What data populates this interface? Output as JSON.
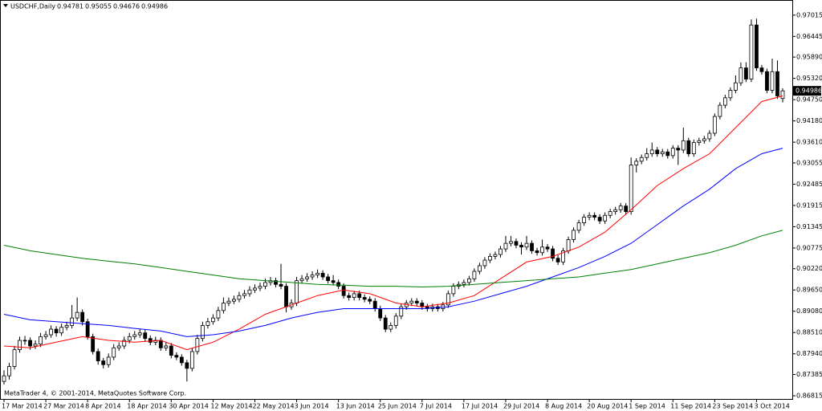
{
  "chart_data": {
    "type": "candlestick",
    "symbol": "USDCHF,Daily",
    "footer": "MetaTrader 4, © 2001-2014, MetaQuotes Software Corp.",
    "categories": [
      "17 Mar 2014",
      null,
      null,
      null,
      null,
      null,
      null,
      null,
      "27 Mar 2014",
      null,
      null,
      null,
      null,
      null,
      null,
      null,
      "8 Apr 2014",
      null,
      null,
      null,
      null,
      null,
      null,
      null,
      "18 Apr 2014",
      null,
      null,
      null,
      null,
      null,
      null,
      null,
      "30 Apr 2014",
      null,
      null,
      null,
      null,
      null,
      null,
      null,
      "12 May 2014",
      null,
      null,
      null,
      null,
      null,
      null,
      null,
      "22 May 2014",
      null,
      null,
      null,
      null,
      null,
      null,
      null,
      "3 Jun 2014",
      null,
      null,
      null,
      null,
      null,
      null,
      null,
      "13 Jun 2014",
      null,
      null,
      null,
      null,
      null,
      null,
      null,
      "25 Jun 2014",
      null,
      null,
      null,
      null,
      null,
      null,
      null,
      "7 Jul 2014",
      null,
      null,
      null,
      null,
      null,
      null,
      null,
      "17 Jul 2014",
      null,
      null,
      null,
      null,
      null,
      null,
      null,
      "29 Jul 2014",
      null,
      null,
      null,
      null,
      null,
      null,
      null,
      "8 Aug 2014",
      null,
      null,
      null,
      null,
      null,
      null,
      null,
      "20 Aug 2014",
      null,
      null,
      null,
      null,
      null,
      null,
      null,
      "1 Sep 2014",
      null,
      null,
      null,
      null,
      null,
      null,
      null,
      "11 Sep 2014",
      null,
      null,
      null,
      null,
      null,
      null,
      null,
      "23 Sep 2014",
      null,
      null,
      null,
      null,
      null,
      null,
      null,
      "3 Oct 2014",
      null,
      null,
      null,
      null,
      null
    ],
    "candles": [
      [
        0.872,
        0.875,
        0.8712,
        0.8735
      ],
      [
        0.8735,
        0.877,
        0.8725,
        0.876
      ],
      [
        0.876,
        0.8815,
        0.8752,
        0.8805
      ],
      [
        0.8805,
        0.884,
        0.8797,
        0.883
      ],
      [
        0.883,
        0.8842,
        0.8818,
        0.883
      ],
      [
        0.883,
        0.8838,
        0.8805,
        0.8815
      ],
      [
        0.8815,
        0.883,
        0.8807,
        0.882
      ],
      [
        0.882,
        0.885,
        0.8812,
        0.884
      ],
      [
        0.884,
        0.8855,
        0.8832,
        0.8845
      ],
      [
        0.8845,
        0.887,
        0.8837,
        0.886
      ],
      [
        0.886,
        0.8868,
        0.884,
        0.885
      ],
      [
        0.885,
        0.8875,
        0.8842,
        0.8865
      ],
      [
        0.8865,
        0.888,
        0.8857,
        0.887
      ],
      [
        0.887,
        0.8925,
        0.8862,
        0.889
      ],
      [
        0.889,
        0.8945,
        0.8882,
        0.8905
      ],
      [
        0.8905,
        0.8913,
        0.887,
        0.888
      ],
      [
        0.888,
        0.8888,
        0.8832,
        0.884
      ],
      [
        0.884,
        0.8848,
        0.8792,
        0.88
      ],
      [
        0.88,
        0.8808,
        0.8765,
        0.8775
      ],
      [
        0.8775,
        0.8783,
        0.8755,
        0.8765
      ],
      [
        0.8765,
        0.8795,
        0.8757,
        0.8785
      ],
      [
        0.8785,
        0.882,
        0.8777,
        0.881
      ],
      [
        0.881,
        0.8825,
        0.8802,
        0.8815
      ],
      [
        0.8815,
        0.884,
        0.8807,
        0.883
      ],
      [
        0.883,
        0.885,
        0.8822,
        0.884
      ],
      [
        0.884,
        0.8855,
        0.8832,
        0.8845
      ],
      [
        0.8845,
        0.886,
        0.8837,
        0.885
      ],
      [
        0.885,
        0.8858,
        0.8827,
        0.8835
      ],
      [
        0.8835,
        0.8843,
        0.8817,
        0.8825
      ],
      [
        0.8825,
        0.884,
        0.8817,
        0.883
      ],
      [
        0.883,
        0.8838,
        0.8802,
        0.881
      ],
      [
        0.881,
        0.8825,
        0.8802,
        0.8815
      ],
      [
        0.8815,
        0.8823,
        0.8782,
        0.879
      ],
      [
        0.879,
        0.8798,
        0.8777,
        0.8785
      ],
      [
        0.8785,
        0.8793,
        0.8762,
        0.877
      ],
      [
        0.877,
        0.8778,
        0.872,
        0.8755
      ],
      [
        0.8755,
        0.881,
        0.8747,
        0.88
      ],
      [
        0.88,
        0.8845,
        0.8792,
        0.8835
      ],
      [
        0.8835,
        0.888,
        0.8827,
        0.887
      ],
      [
        0.887,
        0.889,
        0.8862,
        0.888
      ],
      [
        0.888,
        0.89,
        0.8872,
        0.889
      ],
      [
        0.889,
        0.892,
        0.8882,
        0.891
      ],
      [
        0.891,
        0.8945,
        0.8902,
        0.893
      ],
      [
        0.893,
        0.8945,
        0.8922,
        0.8935
      ],
      [
        0.8935,
        0.895,
        0.8927,
        0.894
      ],
      [
        0.894,
        0.896,
        0.8932,
        0.895
      ],
      [
        0.895,
        0.8965,
        0.8942,
        0.8955
      ],
      [
        0.8955,
        0.8975,
        0.8947,
        0.8965
      ],
      [
        0.8965,
        0.898,
        0.8957,
        0.897
      ],
      [
        0.897,
        0.8985,
        0.8962,
        0.8975
      ],
      [
        0.8975,
        0.8995,
        0.8967,
        0.8985
      ],
      [
        0.8985,
        0.9,
        0.8977,
        0.899
      ],
      [
        0.899,
        0.8998,
        0.8972,
        0.898
      ],
      [
        0.898,
        0.9035,
        0.8967,
        0.8975
      ],
      [
        0.8975,
        0.8983,
        0.8905,
        0.892
      ],
      [
        0.892,
        0.894,
        0.8912,
        0.893
      ],
      [
        0.893,
        0.9,
        0.8922,
        0.899
      ],
      [
        0.899,
        0.9005,
        0.8982,
        0.8995
      ],
      [
        0.8995,
        0.901,
        0.8987,
        0.9
      ],
      [
        0.9,
        0.9015,
        0.8992,
        0.9005
      ],
      [
        0.9005,
        0.902,
        0.8997,
        0.901
      ],
      [
        0.901,
        0.9018,
        0.8992,
        0.9
      ],
      [
        0.9,
        0.9008,
        0.8982,
        0.899
      ],
      [
        0.899,
        0.9005,
        0.8977,
        0.8985
      ],
      [
        0.8985,
        0.8993,
        0.8967,
        0.8975
      ],
      [
        0.8975,
        0.8983,
        0.8942,
        0.895
      ],
      [
        0.895,
        0.8958,
        0.8937,
        0.8945
      ],
      [
        0.8945,
        0.8963,
        0.8937,
        0.8955
      ],
      [
        0.8955,
        0.8963,
        0.8937,
        0.8945
      ],
      [
        0.8945,
        0.8953,
        0.8932,
        0.894
      ],
      [
        0.894,
        0.8948,
        0.8927,
        0.8935
      ],
      [
        0.8935,
        0.8943,
        0.8907,
        0.8915
      ],
      [
        0.8915,
        0.8923,
        0.8882,
        0.889
      ],
      [
        0.889,
        0.8898,
        0.8852,
        0.886
      ],
      [
        0.886,
        0.8878,
        0.8852,
        0.887
      ],
      [
        0.887,
        0.8903,
        0.8862,
        0.8895
      ],
      [
        0.8895,
        0.8928,
        0.8887,
        0.892
      ],
      [
        0.892,
        0.8938,
        0.8912,
        0.893
      ],
      [
        0.893,
        0.8943,
        0.8922,
        0.8935
      ],
      [
        0.8935,
        0.8943,
        0.8922,
        0.893
      ],
      [
        0.893,
        0.8938,
        0.8912,
        0.892
      ],
      [
        0.892,
        0.8928,
        0.8907,
        0.8915
      ],
      [
        0.8915,
        0.8928,
        0.8907,
        0.892
      ],
      [
        0.892,
        0.8928,
        0.8907,
        0.8915
      ],
      [
        0.8915,
        0.8933,
        0.8907,
        0.8925
      ],
      [
        0.8925,
        0.8963,
        0.8917,
        0.8955
      ],
      [
        0.8955,
        0.8983,
        0.8947,
        0.8975
      ],
      [
        0.8975,
        0.8988,
        0.8967,
        0.898
      ],
      [
        0.898,
        0.8993,
        0.8972,
        0.8985
      ],
      [
        0.8985,
        0.9003,
        0.8977,
        0.8995
      ],
      [
        0.8995,
        0.9023,
        0.8987,
        0.9015
      ],
      [
        0.9015,
        0.9038,
        0.9007,
        0.903
      ],
      [
        0.903,
        0.9053,
        0.9022,
        0.9045
      ],
      [
        0.9045,
        0.9063,
        0.9037,
        0.9055
      ],
      [
        0.9055,
        0.9068,
        0.9047,
        0.906
      ],
      [
        0.906,
        0.9083,
        0.9052,
        0.9075
      ],
      [
        0.9075,
        0.911,
        0.9067,
        0.909
      ],
      [
        0.909,
        0.911,
        0.9082,
        0.9095
      ],
      [
        0.9095,
        0.9103,
        0.9077,
        0.9085
      ],
      [
        0.9085,
        0.9093,
        0.906,
        0.908
      ],
      [
        0.908,
        0.911,
        0.9072,
        0.909
      ],
      [
        0.909,
        0.9098,
        0.9062,
        0.907
      ],
      [
        0.907,
        0.9078,
        0.9057,
        0.9065
      ],
      [
        0.9065,
        0.91,
        0.9057,
        0.908
      ],
      [
        0.908,
        0.9088,
        0.9067,
        0.9075
      ],
      [
        0.9075,
        0.9083,
        0.9042,
        0.905
      ],
      [
        0.905,
        0.9058,
        0.9032,
        0.904
      ],
      [
        0.904,
        0.9078,
        0.9032,
        0.907
      ],
      [
        0.907,
        0.9108,
        0.9062,
        0.91
      ],
      [
        0.91,
        0.9133,
        0.9092,
        0.9125
      ],
      [
        0.9125,
        0.9153,
        0.9117,
        0.9145
      ],
      [
        0.9145,
        0.9168,
        0.9137,
        0.916
      ],
      [
        0.916,
        0.9173,
        0.9152,
        0.9165
      ],
      [
        0.9165,
        0.9173,
        0.9152,
        0.916
      ],
      [
        0.916,
        0.9168,
        0.9142,
        0.915
      ],
      [
        0.915,
        0.9173,
        0.9142,
        0.9165
      ],
      [
        0.9165,
        0.9183,
        0.9157,
        0.9175
      ],
      [
        0.9175,
        0.9188,
        0.9167,
        0.918
      ],
      [
        0.918,
        0.9198,
        0.9172,
        0.919
      ],
      [
        0.919,
        0.9198,
        0.9167,
        0.9175
      ],
      [
        0.9175,
        0.932,
        0.9167,
        0.93
      ],
      [
        0.93,
        0.9318,
        0.928,
        0.931
      ],
      [
        0.931,
        0.9328,
        0.9302,
        0.932
      ],
      [
        0.932,
        0.9345,
        0.9312,
        0.933
      ],
      [
        0.933,
        0.936,
        0.9322,
        0.934
      ],
      [
        0.934,
        0.9348,
        0.9322,
        0.933
      ],
      [
        0.933,
        0.9343,
        0.9322,
        0.9335
      ],
      [
        0.9335,
        0.9343,
        0.9317,
        0.9325
      ],
      [
        0.9325,
        0.9353,
        0.9317,
        0.9345
      ],
      [
        0.9345,
        0.9353,
        0.93,
        0.934
      ],
      [
        0.934,
        0.94,
        0.9332,
        0.9365
      ],
      [
        0.9365,
        0.9373,
        0.9322,
        0.933
      ],
      [
        0.933,
        0.9368,
        0.9322,
        0.936
      ],
      [
        0.936,
        0.9373,
        0.9352,
        0.9365
      ],
      [
        0.9365,
        0.9378,
        0.9357,
        0.937
      ],
      [
        0.937,
        0.9393,
        0.9362,
        0.9385
      ],
      [
        0.9385,
        0.9438,
        0.9377,
        0.943
      ],
      [
        0.943,
        0.9468,
        0.9422,
        0.946
      ],
      [
        0.946,
        0.9488,
        0.9452,
        0.948
      ],
      [
        0.948,
        0.9508,
        0.9472,
        0.95
      ],
      [
        0.95,
        0.954,
        0.9492,
        0.952
      ],
      [
        0.952,
        0.9575,
        0.9512,
        0.956
      ],
      [
        0.956,
        0.9575,
        0.9522,
        0.953
      ],
      [
        0.953,
        0.969,
        0.9522,
        0.9675
      ],
      [
        0.9675,
        0.9692,
        0.9552,
        0.956
      ],
      [
        0.956,
        0.9568,
        0.9542,
        0.955
      ],
      [
        0.955,
        0.9558,
        0.9492,
        0.95
      ],
      [
        0.95,
        0.9585,
        0.9492,
        0.955
      ],
      [
        0.955,
        0.958,
        0.9477,
        0.9485
      ],
      [
        0.94781,
        0.95055,
        0.94676,
        0.94986
      ]
    ],
    "lines": [
      {
        "color": "#ff0000",
        "x": [
          0,
          5,
          10,
          15,
          20,
          25,
          30,
          35,
          40,
          45,
          50,
          55,
          60,
          65,
          70,
          75,
          80,
          85,
          90,
          95,
          100,
          105,
          110,
          115,
          120,
          125,
          130,
          135,
          140,
          145,
          149
        ],
        "values": [
          0.8815,
          0.881,
          0.8825,
          0.884,
          0.883,
          0.8825,
          0.883,
          0.8805,
          0.8825,
          0.886,
          0.89,
          0.8925,
          0.895,
          0.8965,
          0.8955,
          0.893,
          0.892,
          0.893,
          0.895,
          0.8995,
          0.904,
          0.9055,
          0.908,
          0.912,
          0.918,
          0.9245,
          0.929,
          0.933,
          0.94,
          0.947,
          0.9485
        ]
      },
      {
        "color": "#0000ff",
        "x": [
          0,
          5,
          10,
          15,
          20,
          25,
          30,
          35,
          40,
          45,
          50,
          55,
          60,
          65,
          70,
          75,
          80,
          85,
          90,
          95,
          100,
          105,
          110,
          115,
          120,
          125,
          130,
          135,
          140,
          145,
          149
        ],
        "values": [
          0.89,
          0.8885,
          0.888,
          0.8875,
          0.887,
          0.8862,
          0.8855,
          0.884,
          0.8845,
          0.8855,
          0.887,
          0.889,
          0.8905,
          0.8915,
          0.8915,
          0.8915,
          0.8915,
          0.892,
          0.8935,
          0.8955,
          0.8975,
          0.9,
          0.9025,
          0.9055,
          0.909,
          0.914,
          0.919,
          0.9235,
          0.929,
          0.933,
          0.9345
        ]
      },
      {
        "color": "#008000",
        "x": [
          0,
          5,
          10,
          15,
          20,
          25,
          30,
          35,
          40,
          45,
          50,
          55,
          60,
          65,
          70,
          75,
          80,
          85,
          90,
          95,
          100,
          105,
          110,
          115,
          120,
          125,
          130,
          135,
          140,
          145,
          149
        ],
        "values": [
          0.9085,
          0.907,
          0.906,
          0.905,
          0.9042,
          0.9035,
          0.9025,
          0.9015,
          0.9005,
          0.8995,
          0.899,
          0.8985,
          0.898,
          0.8978,
          0.8975,
          0.8975,
          0.8973,
          0.8975,
          0.898,
          0.8985,
          0.899,
          0.8995,
          0.9,
          0.901,
          0.902,
          0.9035,
          0.905,
          0.9065,
          0.9085,
          0.911,
          0.9125
        ]
      }
    ],
    "ylim": [
      0.8673,
      0.9742
    ],
    "yticks": [
      0.97015,
      0.96445,
      {
        "value": 0.9589,
        "label": "0.95890"
      },
      {
        "value": 0.9532,
        "label": "0.95320"
      },
      {
        "value": 0.9475,
        "label": "0.94750"
      },
      {
        "value": 0.9418,
        "label": "0.94180"
      },
      {
        "value": 0.9361,
        "label": "0.93610"
      },
      0.93055,
      0.92485,
      0.91915,
      0.91345,
      0.90775,
      {
        "value": 0.9022,
        "label": "0.90220"
      },
      {
        "value": 0.8965,
        "label": "0.89650"
      },
      {
        "value": 0.8908,
        "label": "0.89080"
      },
      {
        "value": 0.8851,
        "label": "0.88510"
      },
      {
        "value": 0.8794,
        "label": "0.87940"
      },
      0.87385,
      0.86815
    ],
    "grid": false
  }
}
